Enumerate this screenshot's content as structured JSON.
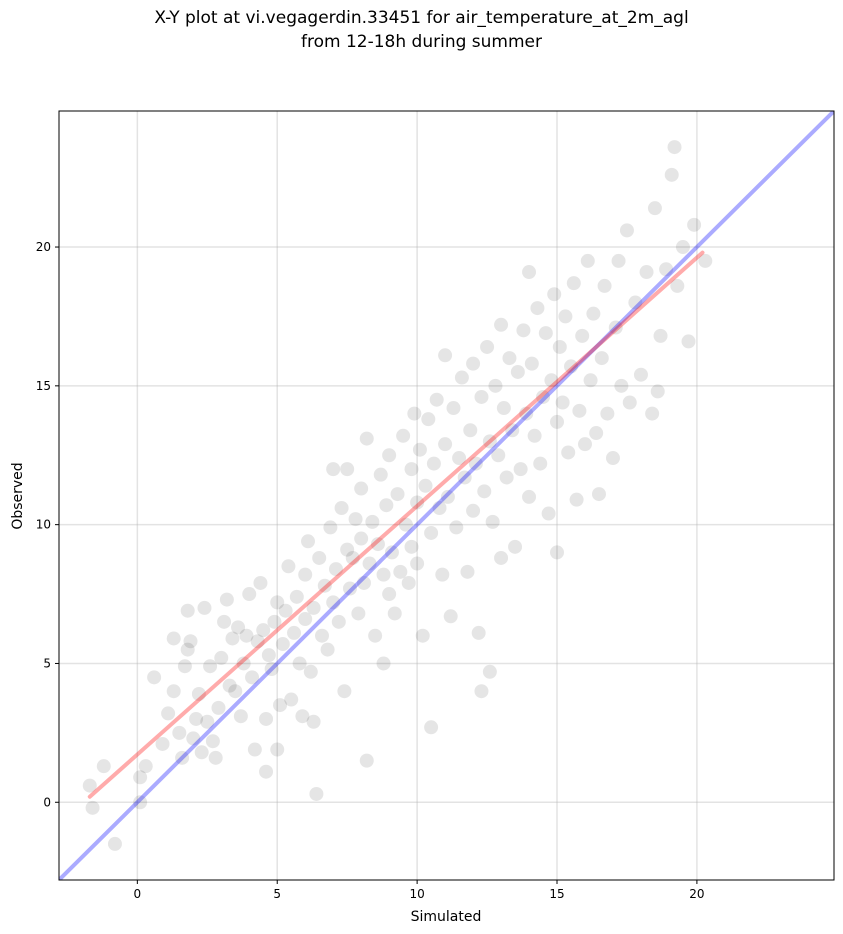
{
  "chart_data": {
    "type": "scatter",
    "title": "X-Y plot at vi.vegagerdin.33451 for air_temperature_at_2m_agl",
    "subtitle": "from 12-18h during summer",
    "xlabel": "Simulated",
    "ylabel": "Observed",
    "xlim": [
      -2.8,
      24.9
    ],
    "ylim": [
      -2.8,
      24.9
    ],
    "xticks": [
      0,
      5,
      10,
      15,
      20
    ],
    "yticks": [
      0,
      5,
      10,
      15,
      20
    ],
    "grid": true,
    "point_color": "#000000",
    "point_alpha": 0.1,
    "identity_line": {
      "x": [
        -2.8,
        24.9
      ],
      "y": [
        -2.8,
        24.9
      ],
      "color": "#0000ff"
    },
    "regression_line": {
      "x": [
        -1.7,
        20.2
      ],
      "y": [
        0.2,
        19.8
      ],
      "color": "#ff0000"
    },
    "points": [
      [
        -1.7,
        0.6
      ],
      [
        -1.6,
        -0.2
      ],
      [
        -1.2,
        1.3
      ],
      [
        -0.8,
        -1.5
      ],
      [
        0.1,
        0.0
      ],
      [
        0.1,
        0.9
      ],
      [
        0.3,
        1.3
      ],
      [
        0.6,
        4.5
      ],
      [
        0.9,
        2.1
      ],
      [
        1.1,
        3.2
      ],
      [
        1.3,
        4.0
      ],
      [
        1.3,
        5.9
      ],
      [
        1.5,
        2.5
      ],
      [
        1.6,
        1.6
      ],
      [
        1.7,
        4.9
      ],
      [
        1.8,
        5.5
      ],
      [
        1.8,
        6.9
      ],
      [
        1.9,
        5.8
      ],
      [
        2.0,
        2.3
      ],
      [
        2.1,
        3.0
      ],
      [
        2.2,
        3.9
      ],
      [
        2.3,
        1.8
      ],
      [
        2.4,
        7.0
      ],
      [
        2.5,
        2.9
      ],
      [
        2.6,
        4.9
      ],
      [
        2.7,
        2.2
      ],
      [
        2.8,
        1.6
      ],
      [
        2.9,
        3.4
      ],
      [
        3.0,
        5.2
      ],
      [
        3.1,
        6.5
      ],
      [
        3.2,
        7.3
      ],
      [
        3.3,
        4.2
      ],
      [
        3.4,
        5.9
      ],
      [
        3.5,
        4.0
      ],
      [
        3.6,
        6.3
      ],
      [
        3.7,
        3.1
      ],
      [
        3.8,
        5.0
      ],
      [
        3.9,
        6.0
      ],
      [
        4.0,
        7.5
      ],
      [
        4.1,
        4.5
      ],
      [
        4.2,
        1.9
      ],
      [
        4.3,
        5.8
      ],
      [
        4.4,
        7.9
      ],
      [
        4.5,
        6.2
      ],
      [
        4.6,
        3.0
      ],
      [
        4.6,
        1.1
      ],
      [
        4.7,
        5.3
      ],
      [
        4.8,
        4.8
      ],
      [
        4.9,
        6.5
      ],
      [
        5.0,
        1.9
      ],
      [
        5.0,
        7.2
      ],
      [
        5.1,
        3.5
      ],
      [
        5.2,
        5.7
      ],
      [
        5.3,
        6.9
      ],
      [
        5.4,
        8.5
      ],
      [
        5.5,
        3.7
      ],
      [
        5.6,
        6.1
      ],
      [
        5.7,
        7.4
      ],
      [
        5.8,
        5.0
      ],
      [
        5.9,
        3.1
      ],
      [
        6.0,
        8.2
      ],
      [
        6.0,
        6.6
      ],
      [
        6.1,
        9.4
      ],
      [
        6.2,
        4.7
      ],
      [
        6.3,
        7.0
      ],
      [
        6.3,
        2.9
      ],
      [
        6.4,
        0.3
      ],
      [
        6.5,
        8.8
      ],
      [
        6.6,
        6.0
      ],
      [
        6.7,
        7.8
      ],
      [
        6.8,
        5.5
      ],
      [
        6.9,
        9.9
      ],
      [
        7.0,
        7.2
      ],
      [
        7.0,
        12.0
      ],
      [
        7.1,
        8.4
      ],
      [
        7.2,
        6.5
      ],
      [
        7.3,
        10.6
      ],
      [
        7.4,
        4.0
      ],
      [
        7.5,
        9.1
      ],
      [
        7.5,
        12.0
      ],
      [
        7.6,
        7.7
      ],
      [
        7.7,
        8.8
      ],
      [
        7.8,
        10.2
      ],
      [
        7.9,
        6.8
      ],
      [
        8.0,
        9.5
      ],
      [
        8.0,
        11.3
      ],
      [
        8.1,
        7.9
      ],
      [
        8.2,
        13.1
      ],
      [
        8.2,
        1.5
      ],
      [
        8.3,
        8.6
      ],
      [
        8.4,
        10.1
      ],
      [
        8.5,
        6.0
      ],
      [
        8.6,
        9.3
      ],
      [
        8.7,
        11.8
      ],
      [
        8.8,
        5.0
      ],
      [
        8.8,
        8.2
      ],
      [
        8.9,
        10.7
      ],
      [
        9.0,
        7.5
      ],
      [
        9.0,
        12.5
      ],
      [
        9.1,
        9.0
      ],
      [
        9.2,
        6.8
      ],
      [
        9.3,
        11.1
      ],
      [
        9.4,
        8.3
      ],
      [
        9.5,
        13.2
      ],
      [
        9.6,
        10.0
      ],
      [
        9.7,
        7.9
      ],
      [
        9.8,
        12.0
      ],
      [
        9.8,
        9.2
      ],
      [
        9.9,
        14.0
      ],
      [
        10.0,
        10.8
      ],
      [
        10.0,
        8.6
      ],
      [
        10.1,
        12.7
      ],
      [
        10.2,
        6.0
      ],
      [
        10.3,
        11.4
      ],
      [
        10.4,
        13.8
      ],
      [
        10.5,
        9.7
      ],
      [
        10.5,
        2.7
      ],
      [
        10.6,
        12.2
      ],
      [
        10.7,
        14.5
      ],
      [
        10.8,
        10.6
      ],
      [
        10.9,
        8.2
      ],
      [
        11.0,
        16.1
      ],
      [
        11.0,
        12.9
      ],
      [
        11.1,
        11.0
      ],
      [
        11.2,
        6.7
      ],
      [
        11.3,
        14.2
      ],
      [
        11.4,
        9.9
      ],
      [
        11.5,
        12.4
      ],
      [
        11.6,
        15.3
      ],
      [
        11.7,
        11.7
      ],
      [
        11.8,
        8.3
      ],
      [
        11.9,
        13.4
      ],
      [
        12.0,
        10.5
      ],
      [
        12.0,
        15.8
      ],
      [
        12.1,
        12.2
      ],
      [
        12.2,
        6.1
      ],
      [
        12.3,
        14.6
      ],
      [
        12.3,
        4.0
      ],
      [
        12.4,
        11.2
      ],
      [
        12.5,
        16.4
      ],
      [
        12.6,
        13.0
      ],
      [
        12.6,
        4.7
      ],
      [
        12.7,
        10.1
      ],
      [
        12.8,
        15.0
      ],
      [
        12.9,
        12.5
      ],
      [
        13.0,
        17.2
      ],
      [
        13.0,
        8.8
      ],
      [
        13.1,
        14.2
      ],
      [
        13.2,
        11.7
      ],
      [
        13.3,
        16.0
      ],
      [
        13.4,
        13.4
      ],
      [
        13.5,
        9.2
      ],
      [
        13.6,
        15.5
      ],
      [
        13.7,
        12.0
      ],
      [
        13.8,
        17.0
      ],
      [
        13.9,
        14.0
      ],
      [
        14.0,
        11.0
      ],
      [
        14.0,
        19.1
      ],
      [
        14.1,
        15.8
      ],
      [
        14.2,
        13.2
      ],
      [
        14.3,
        17.8
      ],
      [
        14.4,
        12.2
      ],
      [
        14.5,
        14.6
      ],
      [
        14.6,
        16.9
      ],
      [
        14.7,
        10.4
      ],
      [
        14.8,
        15.2
      ],
      [
        14.9,
        18.3
      ],
      [
        15.0,
        13.7
      ],
      [
        15.0,
        9.0
      ],
      [
        15.1,
        16.4
      ],
      [
        15.2,
        14.4
      ],
      [
        15.3,
        17.5
      ],
      [
        15.4,
        12.6
      ],
      [
        15.5,
        15.7
      ],
      [
        15.6,
        18.7
      ],
      [
        15.7,
        10.9
      ],
      [
        15.8,
        14.1
      ],
      [
        15.9,
        16.8
      ],
      [
        16.0,
        12.9
      ],
      [
        16.1,
        19.5
      ],
      [
        16.2,
        15.2
      ],
      [
        16.3,
        17.6
      ],
      [
        16.4,
        13.3
      ],
      [
        16.5,
        11.1
      ],
      [
        16.6,
        16.0
      ],
      [
        16.7,
        18.6
      ],
      [
        16.8,
        14.0
      ],
      [
        17.0,
        12.4
      ],
      [
        17.1,
        17.1
      ],
      [
        17.2,
        19.5
      ],
      [
        17.3,
        15.0
      ],
      [
        17.5,
        20.6
      ],
      [
        17.6,
        14.4
      ],
      [
        17.8,
        18.0
      ],
      [
        18.0,
        15.4
      ],
      [
        18.2,
        19.1
      ],
      [
        18.4,
        14.0
      ],
      [
        18.5,
        21.4
      ],
      [
        18.6,
        14.8
      ],
      [
        18.7,
        16.8
      ],
      [
        18.9,
        19.2
      ],
      [
        19.1,
        22.6
      ],
      [
        19.2,
        23.6
      ],
      [
        19.3,
        18.6
      ],
      [
        19.5,
        20.0
      ],
      [
        19.7,
        16.6
      ],
      [
        19.9,
        20.8
      ],
      [
        20.3,
        19.5
      ]
    ]
  }
}
